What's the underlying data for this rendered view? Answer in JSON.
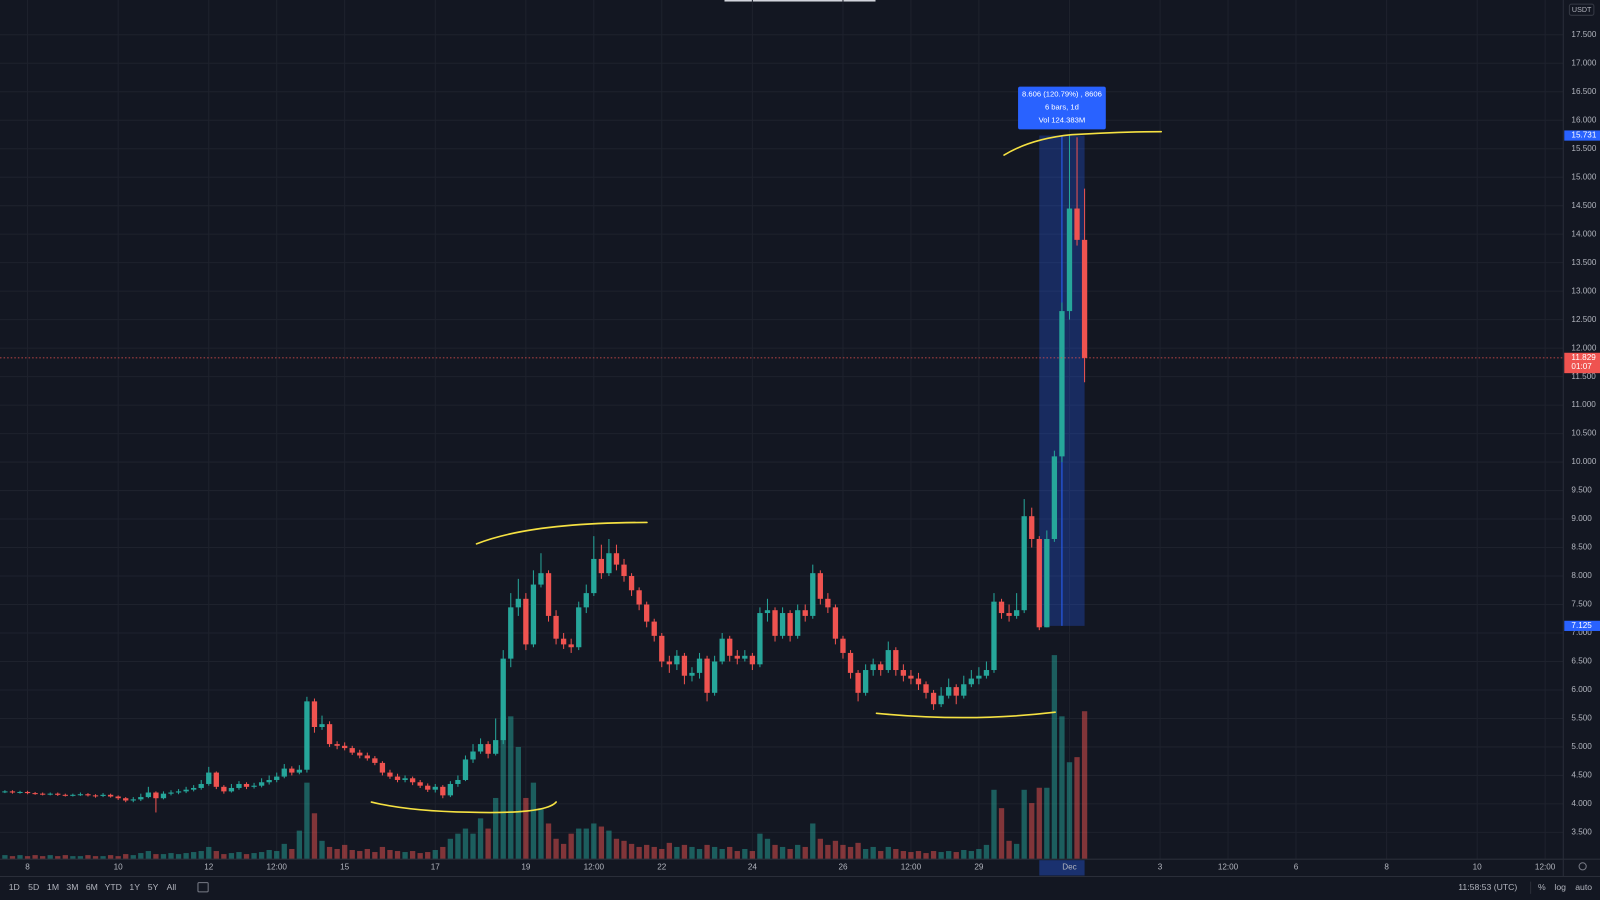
{
  "chart_data": {
    "type": "candlestick",
    "quote_currency": "USDT",
    "open": [
      4.21,
      4.22,
      4.2,
      4.21,
      4.19,
      4.18,
      4.17,
      4.18,
      4.16,
      4.15,
      4.16,
      4.17,
      4.15,
      4.14,
      4.16,
      4.13,
      4.1,
      4.06,
      4.08,
      4.12,
      4.2,
      4.1,
      4.18,
      4.2,
      4.22,
      4.25,
      4.28,
      4.35,
      4.55,
      4.3,
      4.22,
      4.28,
      4.35,
      4.3,
      4.32,
      4.38,
      4.42,
      4.48,
      4.62,
      4.55,
      4.6,
      5.8,
      5.35,
      5.4,
      5.05,
      5.02,
      4.98,
      4.9,
      4.85,
      4.8,
      4.72,
      4.55,
      4.48,
      4.42,
      4.45,
      4.38,
      4.32,
      4.25,
      4.3,
      4.15,
      4.35,
      4.42,
      4.78,
      4.92,
      5.05,
      4.88,
      5.12,
      6.55,
      7.45,
      7.6,
      6.8,
      7.85,
      8.05,
      7.3,
      6.9,
      6.8,
      6.75,
      7.45,
      7.7,
      8.3,
      8.05,
      8.4,
      8.2,
      8.0,
      7.75,
      7.5,
      7.2,
      6.95,
      6.5,
      6.45,
      6.6,
      6.25,
      6.3,
      6.55,
      5.95,
      6.5,
      6.9,
      6.6,
      6.55,
      6.6,
      6.45,
      7.35,
      7.4,
      6.95,
      7.35,
      6.95,
      7.4,
      7.3,
      8.05,
      7.6,
      7.45,
      6.9,
      6.65,
      6.3,
      5.95,
      6.35,
      6.45,
      6.35,
      6.7,
      6.35,
      6.25,
      6.2,
      6.1,
      5.95,
      5.75,
      5.9,
      6.05,
      5.9,
      6.1,
      6.2,
      6.25,
      6.35,
      7.55,
      7.35,
      7.3,
      7.4,
      9.05,
      8.65,
      7.1,
      8.65,
      10.1,
      12.65,
      14.45,
      13.9
    ],
    "high": [
      4.24,
      4.24,
      4.23,
      4.23,
      4.21,
      4.2,
      4.2,
      4.2,
      4.18,
      4.18,
      4.2,
      4.19,
      4.17,
      4.19,
      4.18,
      4.15,
      4.12,
      4.12,
      4.18,
      4.3,
      4.22,
      4.22,
      4.24,
      4.26,
      4.3,
      4.33,
      4.42,
      4.65,
      4.57,
      4.33,
      4.35,
      4.4,
      4.38,
      4.37,
      4.45,
      4.5,
      4.55,
      4.7,
      4.66,
      4.68,
      5.88,
      5.85,
      5.55,
      5.45,
      5.1,
      5.08,
      5.02,
      4.95,
      4.9,
      4.84,
      4.75,
      4.6,
      4.53,
      4.5,
      4.48,
      4.42,
      4.36,
      4.35,
      4.33,
      4.4,
      4.5,
      4.85,
      5.05,
      5.15,
      5.1,
      5.5,
      6.7,
      7.7,
      7.95,
      7.7,
      8.1,
      8.4,
      8.1,
      7.4,
      7.0,
      6.9,
      7.55,
      7.85,
      8.7,
      8.55,
      8.65,
      8.55,
      8.3,
      8.05,
      7.8,
      7.55,
      7.25,
      7.0,
      6.6,
      6.7,
      6.65,
      6.4,
      6.65,
      6.6,
      6.6,
      7.0,
      6.95,
      6.7,
      6.7,
      6.65,
      7.45,
      7.6,
      7.45,
      7.45,
      7.4,
      7.5,
      7.5,
      8.2,
      8.1,
      7.7,
      7.5,
      6.95,
      6.7,
      6.35,
      6.45,
      6.55,
      6.5,
      6.85,
      6.75,
      6.45,
      6.35,
      6.3,
      6.15,
      6.0,
      6.05,
      6.2,
      6.1,
      6.25,
      6.35,
      6.4,
      6.5,
      7.7,
      7.6,
      7.5,
      7.7,
      9.35,
      9.2,
      8.7,
      8.8,
      10.2,
      12.8,
      15.731,
      15.7,
      14.8
    ],
    "low": [
      4.19,
      4.18,
      4.18,
      4.17,
      4.16,
      4.15,
      4.15,
      4.14,
      4.13,
      4.13,
      4.14,
      4.13,
      4.11,
      4.12,
      4.11,
      4.07,
      4.03,
      4.03,
      4.05,
      4.1,
      3.85,
      4.08,
      4.15,
      4.17,
      4.19,
      4.22,
      4.25,
      4.32,
      4.26,
      4.18,
      4.2,
      4.25,
      4.26,
      4.27,
      4.29,
      4.34,
      4.38,
      4.45,
      4.5,
      4.52,
      4.55,
      5.25,
      5.3,
      5.0,
      4.96,
      4.94,
      4.86,
      4.8,
      4.76,
      4.68,
      4.5,
      4.44,
      4.38,
      4.38,
      4.33,
      4.28,
      4.21,
      4.2,
      4.1,
      4.12,
      4.3,
      4.4,
      4.72,
      4.88,
      4.8,
      4.85,
      5.05,
      6.4,
      7.3,
      6.7,
      6.75,
      7.8,
      7.2,
      6.8,
      6.72,
      6.65,
      6.7,
      7.35,
      7.65,
      7.95,
      8.0,
      8.1,
      7.9,
      7.65,
      7.4,
      7.1,
      6.85,
      6.4,
      6.3,
      6.35,
      6.1,
      6.15,
      6.2,
      5.8,
      5.9,
      6.45,
      6.5,
      6.45,
      6.5,
      6.35,
      6.4,
      7.2,
      6.85,
      6.9,
      6.85,
      6.9,
      7.2,
      7.25,
      7.5,
      7.35,
      6.8,
      6.55,
      6.2,
      5.8,
      5.9,
      6.25,
      6.25,
      6.3,
      6.25,
      6.15,
      6.1,
      6.0,
      5.85,
      5.65,
      5.7,
      5.85,
      5.75,
      5.85,
      6.05,
      6.1,
      6.2,
      6.3,
      7.25,
      7.2,
      7.25,
      7.35,
      8.5,
      7.05,
      7.1,
      8.6,
      10.0,
      12.5,
      13.8,
      11.4
    ],
    "close": [
      4.22,
      4.2,
      4.21,
      4.19,
      4.18,
      4.17,
      4.18,
      4.16,
      4.15,
      4.16,
      4.17,
      4.15,
      4.14,
      4.16,
      4.13,
      4.1,
      4.06,
      4.08,
      4.12,
      4.2,
      4.1,
      4.18,
      4.2,
      4.22,
      4.25,
      4.28,
      4.35,
      4.55,
      4.3,
      4.22,
      4.28,
      4.35,
      4.3,
      4.32,
      4.38,
      4.42,
      4.48,
      4.62,
      4.55,
      4.6,
      5.8,
      5.35,
      5.4,
      5.05,
      5.02,
      4.98,
      4.9,
      4.85,
      4.8,
      4.72,
      4.55,
      4.48,
      4.42,
      4.45,
      4.38,
      4.32,
      4.25,
      4.3,
      4.15,
      4.35,
      4.42,
      4.78,
      4.92,
      5.05,
      4.88,
      5.12,
      6.55,
      7.45,
      7.6,
      6.8,
      7.85,
      8.05,
      7.3,
      6.9,
      6.8,
      6.75,
      7.45,
      7.7,
      8.3,
      8.05,
      8.4,
      8.2,
      8.0,
      7.75,
      7.5,
      7.2,
      6.95,
      6.5,
      6.45,
      6.6,
      6.25,
      6.3,
      6.55,
      5.95,
      6.5,
      6.9,
      6.6,
      6.55,
      6.6,
      6.45,
      7.35,
      7.4,
      6.95,
      7.35,
      6.95,
      7.4,
      7.3,
      8.05,
      7.6,
      7.45,
      6.9,
      6.65,
      6.3,
      5.95,
      6.35,
      6.45,
      6.35,
      6.7,
      6.35,
      6.25,
      6.2,
      6.1,
      5.95,
      5.75,
      5.9,
      6.05,
      5.9,
      6.1,
      6.2,
      6.25,
      6.35,
      7.55,
      7.35,
      7.3,
      7.4,
      9.05,
      8.65,
      7.1,
      8.65,
      10.1,
      12.65,
      14.45,
      13.9,
      11.829
    ],
    "volume": [
      4,
      3,
      4,
      3,
      4,
      3,
      4,
      3,
      4,
      3,
      3,
      4,
      3,
      3,
      4,
      3,
      5,
      4,
      6,
      8,
      5,
      5,
      6,
      5,
      6,
      7,
      8,
      12,
      8,
      5,
      6,
      7,
      5,
      6,
      7,
      9,
      8,
      15,
      10,
      28,
      75,
      45,
      18,
      12,
      10,
      14,
      9,
      8,
      10,
      7,
      12,
      9,
      8,
      7,
      8,
      6,
      7,
      9,
      12,
      20,
      25,
      30,
      25,
      40,
      30,
      60,
      140,
      140,
      110,
      60,
      75,
      50,
      35,
      20,
      15,
      25,
      30,
      30,
      35,
      32,
      28,
      20,
      18,
      15,
      12,
      14,
      12,
      10,
      16,
      12,
      14,
      12,
      10,
      14,
      12,
      10,
      12,
      8,
      10,
      8,
      25,
      20,
      14,
      12,
      10,
      14,
      12,
      35,
      20,
      14,
      18,
      14,
      12,
      16,
      10,
      12,
      8,
      12,
      10,
      8,
      7,
      8,
      6,
      8,
      7,
      8,
      7,
      9,
      8,
      10,
      14,
      68,
      50,
      18,
      15,
      68,
      55,
      70,
      70,
      200,
      140,
      95,
      100,
      145
    ],
    "colors": {
      "up": "#26a69a",
      "down": "#ef5350"
    },
    "xlim": [
      -0.65,
      206.4
    ],
    "xticks": [
      {
        "value": 3,
        "label": "8"
      },
      {
        "value": 15,
        "label": "10"
      },
      {
        "value": 27,
        "label": "12"
      },
      {
        "value": 36,
        "label": "12:00"
      },
      {
        "value": 45,
        "label": "15"
      },
      {
        "value": 57,
        "label": "17"
      },
      {
        "value": 69,
        "label": "19"
      },
      {
        "value": 78,
        "label": "12:00"
      },
      {
        "value": 87,
        "label": "22"
      },
      {
        "value": 99,
        "label": "24"
      },
      {
        "value": 111,
        "label": "26"
      },
      {
        "value": 120,
        "label": "12:00"
      },
      {
        "value": 129,
        "label": "29"
      },
      {
        "value": 141,
        "label": "Dec"
      },
      {
        "value": 153,
        "label": "3"
      },
      {
        "value": 162,
        "label": "12:00"
      },
      {
        "value": 171,
        "label": "6"
      },
      {
        "value": 183,
        "label": "8"
      },
      {
        "value": 195,
        "label": "10"
      },
      {
        "value": 204,
        "label": "12:00"
      }
    ],
    "ylim": [
      3.03,
      18.11
    ],
    "yticks": [
      {
        "value": 3.5,
        "label": "3.500"
      },
      {
        "value": 4,
        "label": "4.000"
      },
      {
        "value": 4.5,
        "label": "4.500"
      },
      {
        "value": 5,
        "label": "5.000"
      },
      {
        "value": 5.5,
        "label": "5.500"
      },
      {
        "value": 6,
        "label": "6.000"
      },
      {
        "value": 6.5,
        "label": "6.500"
      },
      {
        "value": 7,
        "label": "7.000"
      },
      {
        "value": 7.5,
        "label": "7.500"
      },
      {
        "value": 8,
        "label": "8.000"
      },
      {
        "value": 8.5,
        "label": "8.500"
      },
      {
        "value": 9,
        "label": "9.000"
      },
      {
        "value": 9.5,
        "label": "9.500"
      },
      {
        "value": 10,
        "label": "10.000"
      },
      {
        "value": 10.5,
        "label": "10.500"
      },
      {
        "value": 11,
        "label": "11.000"
      },
      {
        "value": 11.5,
        "label": "11.500"
      },
      {
        "value": 12,
        "label": "12.000"
      },
      {
        "value": 12.5,
        "label": "12.500"
      },
      {
        "value": 13,
        "label": "13.000"
      },
      {
        "value": 13.5,
        "label": "13.500"
      },
      {
        "value": 14,
        "label": "14.000"
      },
      {
        "value": 14.5,
        "label": "14.500"
      },
      {
        "value": 15,
        "label": "15.000"
      },
      {
        "value": 15.5,
        "label": "15.500"
      },
      {
        "value": 16,
        "label": "16.000"
      },
      {
        "value": 16.5,
        "label": "16.500"
      },
      {
        "value": 17,
        "label": "17.000"
      },
      {
        "value": 17.5,
        "label": "17.500"
      }
    ],
    "grid": true,
    "last_price": {
      "value": 11.829,
      "label": "11.829",
      "countdown": "01:07"
    },
    "measure": {
      "from_bar": 137,
      "to_bar": 143,
      "low": {
        "value": 7.125,
        "label": "7.125"
      },
      "high": {
        "value": 15.731,
        "label": "15.731"
      },
      "text": [
        "8.606 (120.79%) , 8606",
        "6 bars, 1d",
        "Vol 124.383M"
      ]
    }
  },
  "toolbar": {
    "ranges": [
      "1D",
      "5D",
      "1M",
      "3M",
      "6M",
      "YTD",
      "1Y",
      "5Y",
      "All"
    ],
    "clock": "11:58:53 (UTC)",
    "options": [
      "%",
      "log",
      "auto"
    ]
  }
}
